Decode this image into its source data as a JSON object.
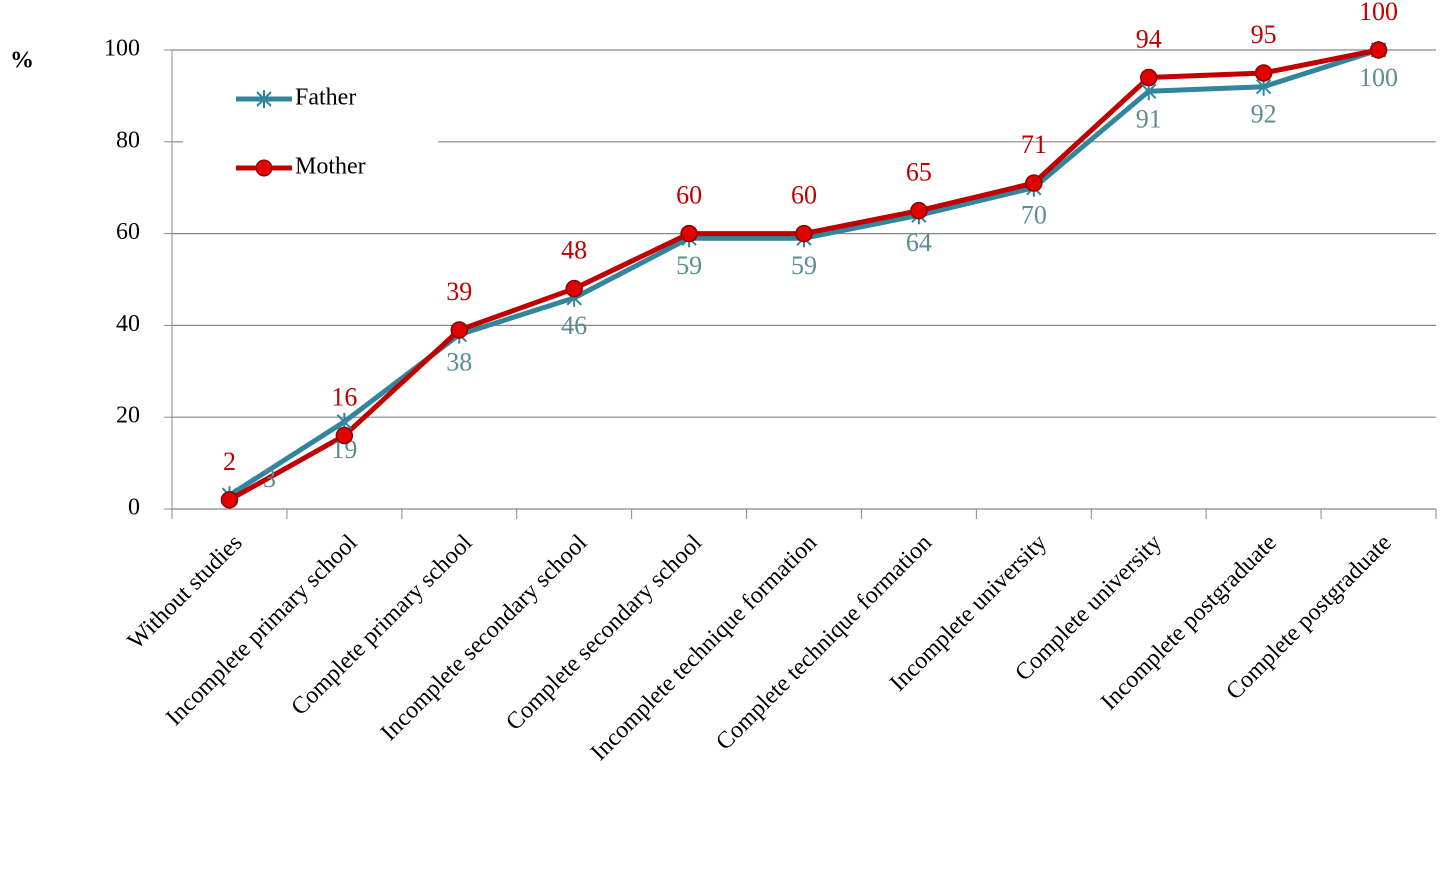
{
  "chart_data": {
    "type": "line",
    "y_label": "%",
    "categories": [
      "Without studies",
      "Incomplete primary school",
      "Complete primary school",
      "Incomplete secondary school",
      "Complete secondary school",
      "Incomplete technique formation",
      "Complete technique formation",
      "Incomplete university",
      "Complete university",
      "Incomplete postgraduate",
      "Complete postgraduate"
    ],
    "series": [
      {
        "name": "Father",
        "color": "#31859c",
        "label_color": "#5b8d92",
        "marker": "asterisk",
        "values": [
          3,
          19,
          38,
          46,
          59,
          59,
          64,
          70,
          91,
          92,
          100
        ]
      },
      {
        "name": "Mother",
        "color": "#c00000",
        "label_color": "#c00000",
        "marker": "circle",
        "values": [
          2,
          16,
          39,
          48,
          60,
          60,
          65,
          71,
          94,
          95,
          100
        ]
      }
    ],
    "ylim": [
      0,
      100
    ],
    "yticks": [
      0,
      20,
      40,
      60,
      80,
      100
    ],
    "grid": true,
    "legend": "upper left"
  }
}
